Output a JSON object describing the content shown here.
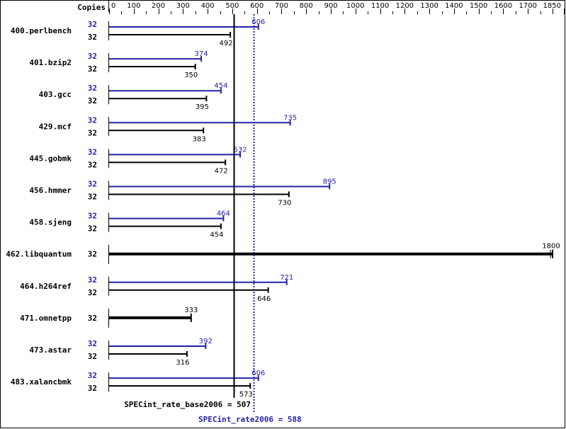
{
  "chart_data": {
    "type": "bar",
    "orientation": "horizontal",
    "copies_header": "Copies",
    "xlim": [
      0,
      1850
    ],
    "tick_labels": [
      "0",
      "100",
      "200",
      "300",
      "400",
      "500",
      "600",
      "700",
      "800",
      "900",
      "1000",
      "1100",
      "1200",
      "1300",
      "1400",
      "1500",
      "1600",
      "1700",
      "1850"
    ],
    "colors": {
      "peak": "#2222aa",
      "base": "#000000"
    },
    "benchmarks": [
      {
        "name": "400.perlbench",
        "peak_copies": "32",
        "peak": 606,
        "base_copies": "32",
        "base": 492
      },
      {
        "name": "401.bzip2",
        "peak_copies": "32",
        "peak": 374,
        "base_copies": "32",
        "base": 350
      },
      {
        "name": "403.gcc",
        "peak_copies": "32",
        "peak": 454,
        "base_copies": "32",
        "base": 395
      },
      {
        "name": "429.mcf",
        "peak_copies": "32",
        "peak": 735,
        "base_copies": "32",
        "base": 383
      },
      {
        "name": "445.gobmk",
        "peak_copies": "32",
        "peak": 532,
        "base_copies": "32",
        "base": 472
      },
      {
        "name": "456.hmmer",
        "peak_copies": "32",
        "peak": 895,
        "base_copies": "32",
        "base": 730
      },
      {
        "name": "458.sjeng",
        "peak_copies": "32",
        "peak": 464,
        "base_copies": "32",
        "base": 454
      },
      {
        "name": "462.libquantum",
        "single_copies": "32",
        "single": 1800
      },
      {
        "name": "464.h264ref",
        "peak_copies": "32",
        "peak": 721,
        "base_copies": "32",
        "base": 646
      },
      {
        "name": "471.omnetpp",
        "single_copies": "32",
        "single": 333
      },
      {
        "name": "473.astar",
        "peak_copies": "32",
        "peak": 392,
        "base_copies": "32",
        "base": 316
      },
      {
        "name": "483.xalancbmk",
        "peak_copies": "32",
        "peak": 606,
        "base_copies": "32",
        "base": 573
      }
    ],
    "base_metric": {
      "label": "SPECint_rate_base2006 = 507",
      "value": 507
    },
    "peak_metric": {
      "label": "SPECint_rate2006 = 588",
      "value": 588
    }
  }
}
